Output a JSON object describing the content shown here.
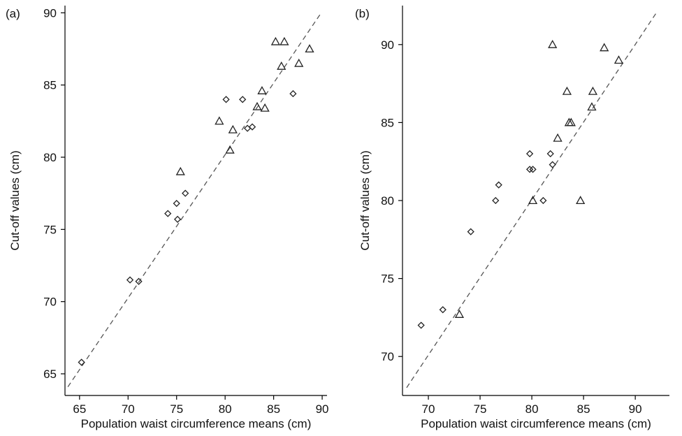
{
  "chart_data": [
    {
      "type": "scatter",
      "panel_label": "(a)",
      "xlabel": "Population waist circumference means (cm)",
      "ylabel": "Cut-off values (cm)",
      "xlim": [
        63.5,
        90.5
      ],
      "ylim": [
        63.5,
        90.5
      ],
      "xticks": [
        65,
        70,
        75,
        80,
        85,
        90
      ],
      "yticks": [
        65,
        70,
        75,
        80,
        85,
        90
      ],
      "grid": false,
      "series": [
        {
          "marker": "diamond",
          "points": [
            [
              65.2,
              65.8
            ],
            [
              70.2,
              71.5
            ],
            [
              71.1,
              71.4
            ],
            [
              74.1,
              76.1
            ],
            [
              75.0,
              76.8
            ],
            [
              75.1,
              75.7
            ],
            [
              75.9,
              77.5
            ],
            [
              80.1,
              84.0
            ],
            [
              81.8,
              84.0
            ],
            [
              82.3,
              82.0
            ],
            [
              82.8,
              82.1
            ],
            [
              87.0,
              84.4
            ]
          ]
        },
        {
          "marker": "triangle",
          "points": [
            [
              75.4,
              79.0
            ],
            [
              79.4,
              82.5
            ],
            [
              80.5,
              80.5
            ],
            [
              80.8,
              81.9
            ],
            [
              83.3,
              83.5
            ],
            [
              83.8,
              84.6
            ],
            [
              84.1,
              83.4
            ],
            [
              85.2,
              88.0
            ],
            [
              85.8,
              86.3
            ],
            [
              86.1,
              88.0
            ],
            [
              87.6,
              86.5
            ],
            [
              88.7,
              87.5
            ]
          ]
        }
      ],
      "reference_line": {
        "style": "dashed",
        "x": [
          63.8,
          89.9
        ],
        "y": [
          64.1,
          90.0
        ]
      }
    },
    {
      "type": "scatter",
      "panel_label": "(b)",
      "xlabel": "Population waist circumference means (cm)",
      "ylabel": "Cut-off values (cm)",
      "xlim": [
        67.5,
        93.3
      ],
      "ylim": [
        67.5,
        92.5
      ],
      "xticks": [
        70,
        75,
        80,
        85,
        90
      ],
      "yticks": [
        70,
        75,
        80,
        85,
        90
      ],
      "grid": false,
      "series": [
        {
          "marker": "diamond",
          "points": [
            [
              69.3,
              72.0
            ],
            [
              71.4,
              73.0
            ],
            [
              74.1,
              78.0
            ],
            [
              76.5,
              80.0
            ],
            [
              76.8,
              81.0
            ],
            [
              79.8,
              83.0
            ],
            [
              79.8,
              82.0
            ],
            [
              80.1,
              82.0
            ],
            [
              81.1,
              80.0
            ],
            [
              81.8,
              83.0
            ],
            [
              82.0,
              82.3
            ]
          ]
        },
        {
          "marker": "triangle",
          "points": [
            [
              73.0,
              72.7
            ],
            [
              80.1,
              80.0
            ],
            [
              82.0,
              90.0
            ],
            [
              82.5,
              84.0
            ],
            [
              83.4,
              87.0
            ],
            [
              83.6,
              85.0
            ],
            [
              83.8,
              85.0
            ],
            [
              84.7,
              80.0
            ],
            [
              85.8,
              86.0
            ],
            [
              85.9,
              87.0
            ],
            [
              87.0,
              89.8
            ],
            [
              88.4,
              89.0
            ]
          ]
        }
      ],
      "reference_line": {
        "style": "dashed",
        "x": [
          67.9,
          92.0
        ],
        "y": [
          68.0,
          92.0
        ]
      }
    }
  ]
}
